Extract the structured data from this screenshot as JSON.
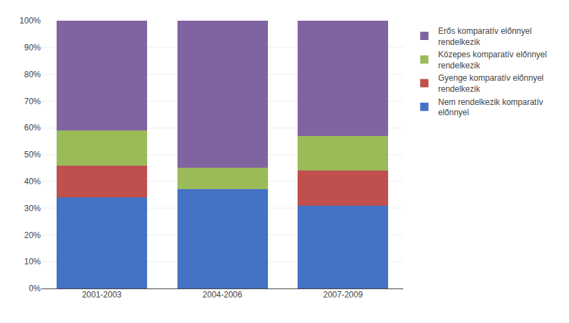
{
  "chart_data": {
    "type": "bar",
    "stacked": true,
    "categories": [
      "2001-2003",
      "2004-2006",
      "2007-2009"
    ],
    "series": [
      {
        "name": "Nem rendelkezik komparatív\nelőnnyel",
        "color": "#4472C4",
        "values": [
          34,
          37,
          31
        ]
      },
      {
        "name": "Gyenge komparatív előnnyel\nrendelkezik",
        "color": "#C0504D",
        "values": [
          12,
          0,
          13
        ]
      },
      {
        "name": "Közepes komparatív előnnyel\nrendelkezik",
        "color": "#9BBB59",
        "values": [
          13,
          8,
          13
        ]
      },
      {
        "name": "Erős komparatív előnnyel\nrendelkezik",
        "color": "#8064A2",
        "values": [
          41,
          55,
          43
        ]
      }
    ],
    "ylim": [
      0,
      100
    ],
    "yticks": [
      {
        "value": 0,
        "label": "0%"
      },
      {
        "value": 10,
        "label": "10%"
      },
      {
        "value": 20,
        "label": "20%"
      },
      {
        "value": 30,
        "label": "30%"
      },
      {
        "value": 40,
        "label": "40%"
      },
      {
        "value": 50,
        "label": "50%"
      },
      {
        "value": 60,
        "label": "60%"
      },
      {
        "value": 70,
        "label": "70%"
      },
      {
        "value": 80,
        "label": "80%"
      },
      {
        "value": 90,
        "label": "90%"
      },
      {
        "value": 100,
        "label": "100%"
      }
    ],
    "grid": true,
    "legend": "right"
  }
}
